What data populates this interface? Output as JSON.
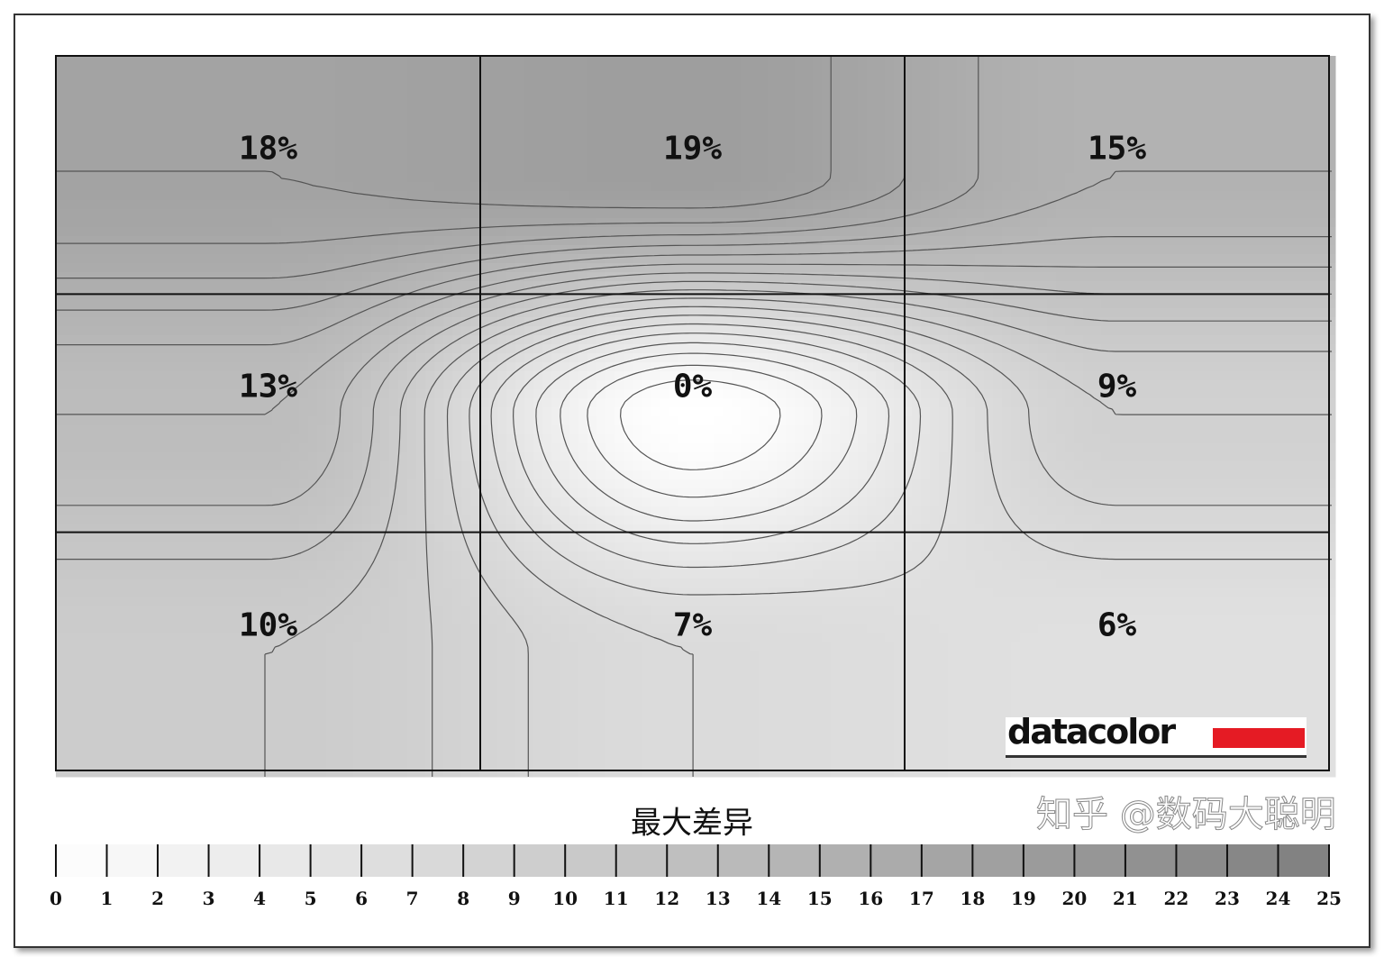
{
  "chart_data": {
    "type": "heatmap",
    "title": "最大差异",
    "grid_rows": 3,
    "grid_cols": 3,
    "values": [
      [
        18,
        19,
        15
      ],
      [
        13,
        0,
        9
      ],
      [
        10,
        7,
        6
      ]
    ],
    "labels": [
      [
        "18%",
        "19%",
        "15%"
      ],
      [
        "13%",
        "0%",
        "9%"
      ],
      [
        "10%",
        "7%",
        "6%"
      ]
    ],
    "scale_ticks": [
      "0",
      "1",
      "2",
      "3",
      "4",
      "5",
      "6",
      "7",
      "8",
      "9",
      "10",
      "11",
      "12",
      "13",
      "14",
      "15",
      "16",
      "17",
      "18",
      "19",
      "20",
      "21",
      "22",
      "23",
      "24",
      "25"
    ],
    "scale_range": [
      0,
      25
    ],
    "colors": {
      "min": "#ffffff",
      "max": "#7f7f7f"
    },
    "contours": true
  },
  "logo": "datacolor",
  "watermark": "知乎 @数码大聪明"
}
